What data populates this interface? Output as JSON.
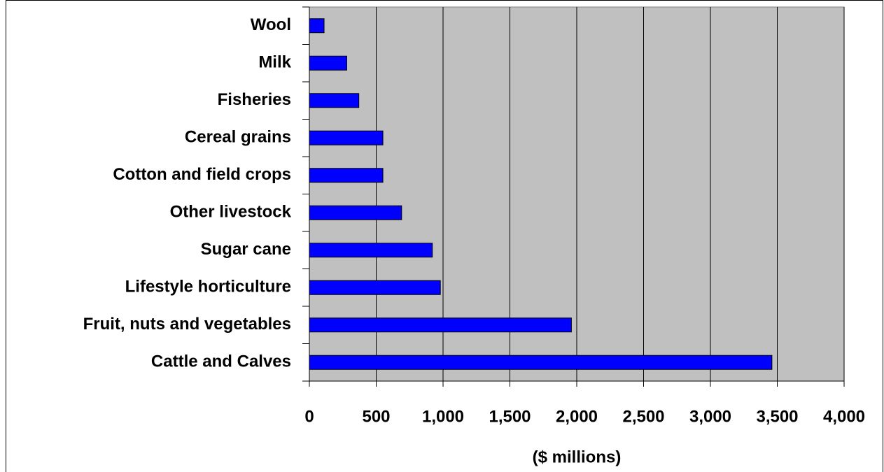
{
  "chart_data": {
    "type": "bar",
    "orientation": "horizontal",
    "x_label": "($ millions)",
    "categories": [
      "Wool",
      "Milk",
      "Fisheries",
      "Cereal grains",
      "Cotton and field crops",
      "Other livestock",
      "Sugar cane",
      "Lifestyle horticulture",
      "Fruit, nuts and vegetables",
      "Cattle and Calves"
    ],
    "values": [
      110,
      280,
      370,
      550,
      550,
      690,
      920,
      980,
      1960,
      3460
    ],
    "color": "#0000ff",
    "plot_background": "#c0c0c0",
    "xlim": [
      0,
      4000
    ],
    "xticks": [
      0,
      500,
      {
        "value": 1000,
        "label": "1,000"
      },
      {
        "value": 1500,
        "label": "1,500"
      },
      {
        "value": 2000,
        "label": "2,000"
      },
      {
        "value": 2500,
        "label": "2,500"
      },
      {
        "value": 3000,
        "label": "3,000"
      },
      {
        "value": 3500,
        "label": "3,500"
      },
      {
        "value": 4000,
        "label": "4,000"
      }
    ],
    "grid": true
  }
}
